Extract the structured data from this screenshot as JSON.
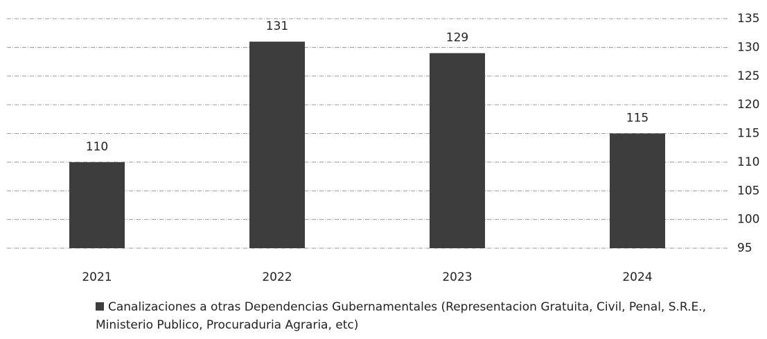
{
  "chart_data": {
    "type": "bar",
    "categories": [
      "2021",
      "2022",
      "2023",
      "2024"
    ],
    "series": [
      {
        "name": "Canalizaciones a otras Dependencias Gubernamentales (Representacion Gratuita, Civil, Penal, S.R.E., Ministerio Publico, Procuraduria Agraria, etc)",
        "color": "#3d3d3d",
        "values": [
          110,
          131,
          129,
          115
        ]
      }
    ],
    "ylim": [
      95,
      135
    ],
    "yticks": [
      95,
      100,
      105,
      110,
      115,
      120,
      125,
      130,
      135
    ],
    "grid": true,
    "data_labels": true,
    "y_axis_side": "right",
    "legend": "bottom-left"
  }
}
